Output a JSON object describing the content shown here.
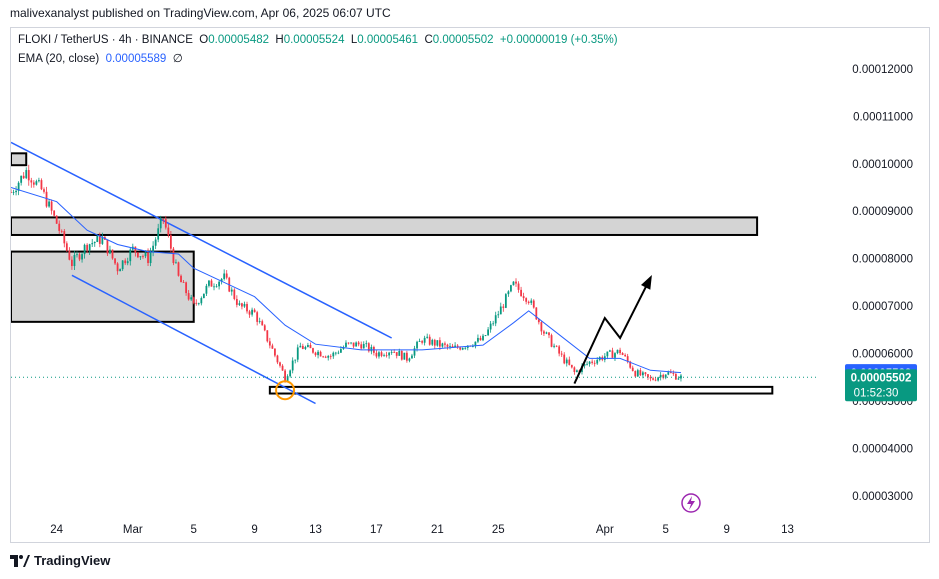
{
  "header": {
    "text": "malivexanalyst published on TradingView.com, Apr 06, 2025 06:07 UTC"
  },
  "legend": {
    "symbol": "FLOKI / TetherUS · 4h · BINANCE",
    "o_label": "O",
    "o": "0.00005482",
    "h_label": "H",
    "h": "0.00005524",
    "l_label": "L",
    "l": "0.00005461",
    "c_label": "C",
    "c": "0.00005502",
    "change": "+0.00000019 (+0.35%)",
    "ema_label": "EMA (20, close)",
    "ema_value": "0.00005589",
    "ema_suffix": "∅"
  },
  "footer": {
    "brand": "TradingView"
  },
  "colors": {
    "up": "#089981",
    "down": "#f23645",
    "ema": "#2962ff",
    "channel": "#2962ff",
    "zone_fill": "#d4d4d4",
    "target": "#ff9800",
    "badge": "#9c27b0"
  },
  "chart_data": {
    "type": "candlestick",
    "symbol": "FLOKI / TetherUS",
    "interval": "4h",
    "exchange": "BINANCE",
    "y_axis": {
      "range": [
        2.58e-05,
        0.0001286
      ],
      "ticks": [
        "0.00012000",
        "0.00011000",
        "0.00010000",
        "0.00009000",
        "0.00008000",
        "0.00007000",
        "0.00006000",
        "0.00005000",
        "0.00004000",
        "0.00003000"
      ]
    },
    "x_axis": {
      "range_days": [
        "Feb 21",
        "Apr 15"
      ],
      "ticks": [
        {
          "date": "Feb 24",
          "label": "24"
        },
        {
          "date": "Mar 1",
          "label": "Mar"
        },
        {
          "date": "Mar 5",
          "label": "5"
        },
        {
          "date": "Mar 9",
          "label": "9"
        },
        {
          "date": "Mar 13",
          "label": "13"
        },
        {
          "date": "Mar 17",
          "label": "17"
        },
        {
          "date": "Mar 21",
          "label": "21"
        },
        {
          "date": "Mar 25",
          "label": "25"
        },
        {
          "date": "Apr 1",
          "label": "Apr"
        },
        {
          "date": "Apr 5",
          "label": "5"
        },
        {
          "date": "Apr 9",
          "label": "9"
        },
        {
          "date": "Apr 13",
          "label": "13"
        }
      ]
    },
    "price_path": [
      [
        "Feb 21",
        9.4e-05
      ],
      [
        "Feb 22",
        9.85e-05
      ],
      [
        "Feb 23",
        9.45e-05
      ],
      [
        "Feb 24",
        8.75e-05
      ],
      [
        "Feb 25",
        7.9e-05
      ],
      [
        "Feb 26",
        8.3e-05
      ],
      [
        "Feb 27",
        8.42e-05
      ],
      [
        "Feb 28",
        7.8e-05
      ],
      [
        "Mar 1",
        8.2e-05
      ],
      [
        "Mar 2",
        8e-05
      ],
      [
        "Mar 3",
        8.85e-05
      ],
      [
        "Mar 4",
        7.6e-05
      ],
      [
        "Mar 5",
        7e-05
      ],
      [
        "Mar 6",
        7.45e-05
      ],
      [
        "Mar 7",
        7.6e-05
      ],
      [
        "Mar 8",
        7e-05
      ],
      [
        "Mar 9",
        6.85e-05
      ],
      [
        "Mar 10",
        6.2e-05
      ],
      [
        "Mar 11",
        5.5e-05
      ],
      [
        "Mar 12",
        6.15e-05
      ],
      [
        "Mar 13",
        6.05e-05
      ],
      [
        "Mar 14",
        5.95e-05
      ],
      [
        "Mar 15",
        6.18e-05
      ],
      [
        "Mar 16",
        6.2e-05
      ],
      [
        "Mar 17",
        6e-05
      ],
      [
        "Mar 18",
        6.08e-05
      ],
      [
        "Mar 19",
        5.9e-05
      ],
      [
        "Mar 20",
        6.3e-05
      ],
      [
        "Mar 21",
        6.2e-05
      ],
      [
        "Mar 22",
        6.1e-05
      ],
      [
        "Mar 23",
        6.2e-05
      ],
      [
        "Mar 24",
        6.3e-05
      ],
      [
        "Mar 25",
        6.85e-05
      ],
      [
        "Mar 26",
        7.45e-05
      ],
      [
        "Mar 27",
        7.15e-05
      ],
      [
        "Mar 28",
        6.45e-05
      ],
      [
        "Mar 29",
        6e-05
      ],
      [
        "Mar 30",
        5.6e-05
      ],
      [
        "Mar 31",
        5.82e-05
      ],
      [
        "Apr 1",
        5.95e-05
      ],
      [
        "Apr 2",
        6.05e-05
      ],
      [
        "Apr 3",
        5.6e-05
      ],
      [
        "Apr 4",
        5.45e-05
      ],
      [
        "Apr 5",
        5.6e-05
      ],
      [
        "Apr 6",
        5.5e-05
      ]
    ],
    "ema_20_path": [
      [
        "Feb 21",
        9.5e-05
      ],
      [
        "Feb 24",
        9.2e-05
      ],
      [
        "Feb 26",
        8.6e-05
      ],
      [
        "Feb 28",
        8.3e-05
      ],
      [
        "Mar 2",
        8.15e-05
      ],
      [
        "Mar 4",
        8.1e-05
      ],
      [
        "Mar 5",
        7.8e-05
      ],
      [
        "Mar 7",
        7.5e-05
      ],
      [
        "Mar 9",
        7.2e-05
      ],
      [
        "Mar 11",
        6.6e-05
      ],
      [
        "Mar 13",
        6.2e-05
      ],
      [
        "Mar 16",
        6.08e-05
      ],
      [
        "Mar 20",
        6.08e-05
      ],
      [
        "Mar 24",
        6.18e-05
      ],
      [
        "Mar 26",
        6.65e-05
      ],
      [
        "Mar 27",
        6.9e-05
      ],
      [
        "Mar 29",
        6.4e-05
      ],
      [
        "Mar 31",
        5.9e-05
      ],
      [
        "Apr 2",
        5.9e-05
      ],
      [
        "Apr 4",
        5.65e-05
      ],
      [
        "Apr 6",
        5.6e-05
      ]
    ],
    "last_price": 5.502e-05,
    "ema_value": 5.589e-05,
    "price_label": "0.00005502",
    "ema_price_label": "0.00005589",
    "countdown": "01:52:30",
    "drawings": {
      "channel_upper": [
        [
          "Feb 21",
          0.0001045
        ],
        [
          "Mar 18",
          6.33e-05
        ]
      ],
      "channel_lower": [
        [
          "Feb 25",
          7.65e-05
        ],
        [
          "Mar 13",
          4.95e-05
        ]
      ],
      "zone_top": {
        "from": "Feb 21",
        "to": "Apr 11",
        "y_low": 8.5e-05,
        "y_high": 8.87e-05
      },
      "zone_box": {
        "from": "Feb 21",
        "to": "Mar 5",
        "y_low": 6.67e-05,
        "y_high": 8.15e-05
      },
      "zone_small": {
        "from": "Feb 21",
        "to": "Feb 22",
        "y_low": 9.97e-05,
        "y_high": 0.0001022
      },
      "support_zone": {
        "from": "Mar 10",
        "to": "Apr 12",
        "y_low": 5.16e-05,
        "y_high": 5.3e-05
      },
      "target_circle": {
        "date": "Mar 11",
        "price": 5.23e-05
      },
      "projection": [
        [
          "Mar 30",
          5.37e-05
        ],
        [
          "Apr 1",
          6.75e-05
        ],
        [
          "Apr 2",
          6.33e-05
        ],
        [
          "Apr 4",
          7.6e-05
        ]
      ]
    }
  }
}
